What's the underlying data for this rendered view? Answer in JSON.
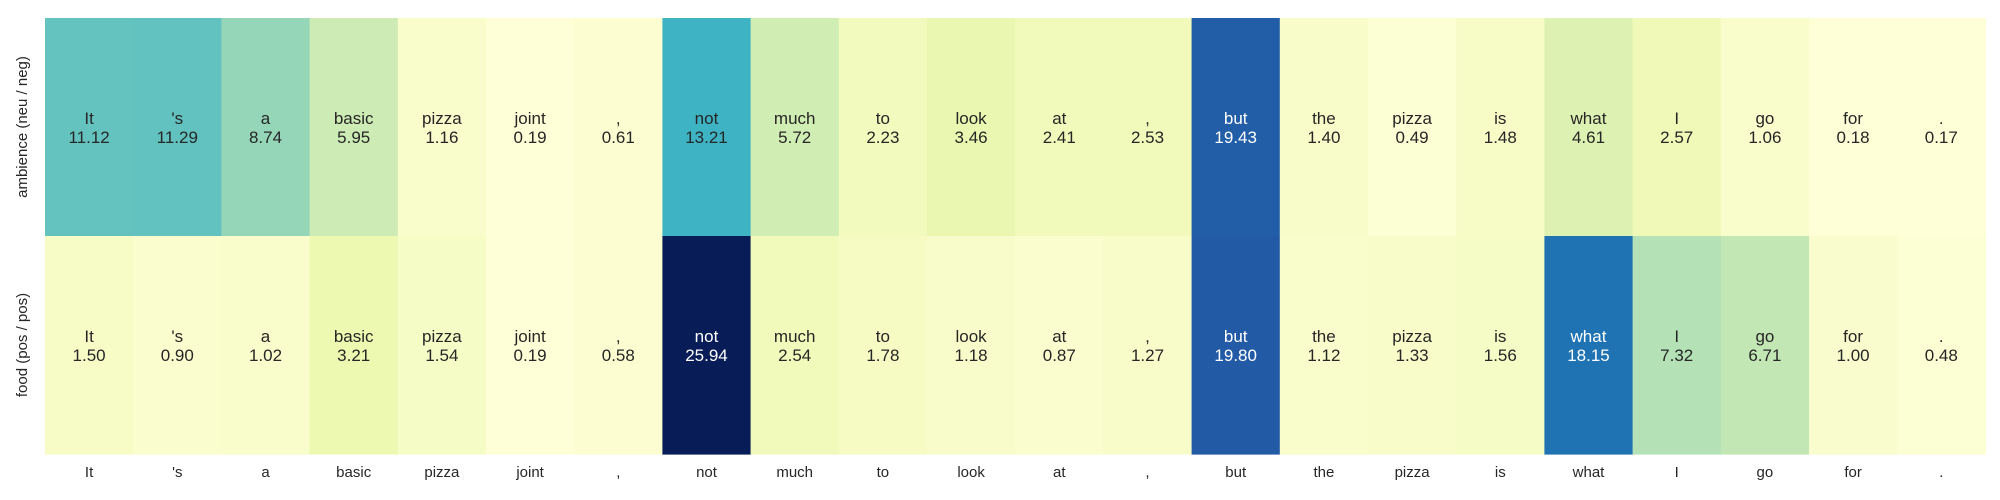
{
  "chart_data": {
    "type": "heatmap",
    "colormap": "YlGnBu",
    "tokens": [
      "It",
      "'s",
      "a",
      "basic",
      "pizza",
      "joint",
      ",",
      "not",
      "much",
      "to",
      "look",
      "at",
      ",",
      "but",
      "the",
      "pizza",
      "is",
      "what",
      "I",
      "go",
      "for",
      "."
    ],
    "rows": [
      {
        "label": "ambience (neu / neg)",
        "values": [
          11.12,
          11.29,
          8.74,
          5.95,
          1.16,
          0.19,
          0.61,
          13.21,
          5.72,
          2.23,
          3.46,
          2.41,
          2.53,
          19.43,
          1.4,
          0.49,
          1.48,
          4.61,
          2.57,
          1.06,
          0.18,
          0.17
        ]
      },
      {
        "label": "food (pos / pos)",
        "values": [
          1.5,
          0.9,
          1.02,
          3.21,
          1.54,
          0.19,
          0.58,
          25.94,
          2.54,
          1.78,
          1.18,
          0.87,
          1.27,
          19.8,
          1.12,
          1.33,
          1.56,
          18.15,
          7.32,
          6.71,
          1.0,
          0.48
        ]
      }
    ],
    "value_range": [
      0,
      25.94
    ],
    "grid": false,
    "legend": "none"
  }
}
